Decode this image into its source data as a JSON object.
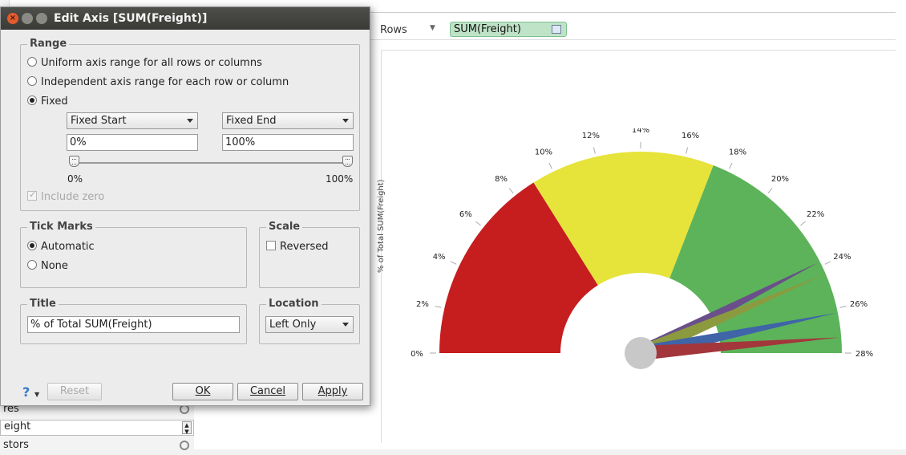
{
  "app": {
    "rows_label": "Rows",
    "pill_label": "SUM(Freight)",
    "axis_title": "% of Total SUM(Freight)",
    "left_panel": {
      "row1": "res",
      "row2": "eight",
      "row3": "stors"
    }
  },
  "dialog": {
    "title": "Edit Axis [SUM(Freight)]",
    "range": {
      "legend": "Range",
      "opt_uniform": "Uniform axis range for all rows or columns",
      "opt_independent": "Independent axis range for each row or column",
      "opt_fixed": "Fixed",
      "selected": "Fixed",
      "start_mode": "Fixed Start",
      "end_mode": "Fixed End",
      "start_value": "0%",
      "end_value": "100%",
      "slider_min_label": "0%",
      "slider_max_label": "100%",
      "slider_start": 0,
      "slider_end": 1,
      "include_zero": "Include zero",
      "include_zero_checked": true,
      "include_zero_enabled": false
    },
    "tick_marks": {
      "legend": "Tick Marks",
      "opt_automatic": "Automatic",
      "opt_none": "None",
      "selected": "Automatic"
    },
    "scale": {
      "legend": "Scale",
      "reversed": "Reversed",
      "reversed_checked": false
    },
    "title_group": {
      "legend": "Title",
      "value": "% of Total SUM(Freight)"
    },
    "location": {
      "legend": "Location",
      "value": "Left Only"
    },
    "buttons": {
      "help": "?",
      "reset": "Reset",
      "ok": "OK",
      "cancel": "Cancel",
      "apply": "Apply"
    }
  },
  "chart_data": {
    "type": "gauge",
    "tick_labels": [
      "0%",
      "2%",
      "4%",
      "6%",
      "8%",
      "10%",
      "12%",
      "14%",
      "16%",
      "18%",
      "20%",
      "22%",
      "24%",
      "26%",
      "28%"
    ],
    "ticks": [
      0,
      2,
      4,
      6,
      8,
      10,
      12,
      14,
      16,
      18,
      20,
      22,
      24,
      26,
      28
    ],
    "range": [
      0,
      28
    ],
    "bands": [
      {
        "from": 0,
        "to": 9,
        "color": "#c61d1f"
      },
      {
        "from": 9,
        "to": 17.3,
        "color": "#e6e33b"
      },
      {
        "from": 17.3,
        "to": 28,
        "color": "#5cb35a"
      }
    ],
    "needles": [
      {
        "value": 23.8,
        "color": "#6a4f8a"
      },
      {
        "value": 24.4,
        "color": "#8c9a3f"
      },
      {
        "value": 26.2,
        "color": "#3f64a8"
      },
      {
        "value": 27.3,
        "color": "#a3363b"
      }
    ],
    "hub_color": "#c8c8c8"
  }
}
